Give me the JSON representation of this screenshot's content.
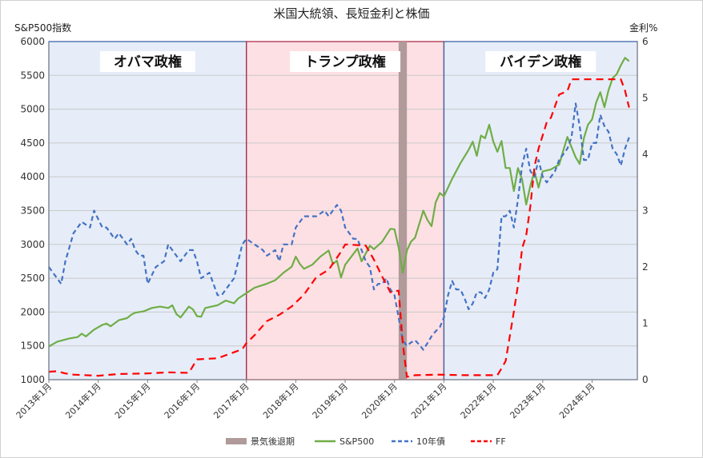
{
  "chart_data": {
    "type": "line",
    "title": "米国大統領、長短金利と株価",
    "ylabel_left": "S&P500指数",
    "ylabel_right": "金利%",
    "ylim_left": [
      1000,
      6000
    ],
    "ylim_right": [
      0,
      6
    ],
    "yticks_left": [
      "1000",
      "1500",
      "2000",
      "2500",
      "3000",
      "3500",
      "4000",
      "4500",
      "5000",
      "5500",
      "6000"
    ],
    "yticks_right": [
      "0",
      "1",
      "2",
      "3",
      "4",
      "5",
      "6"
    ],
    "x_ticks": [
      "2013年1月",
      "2014年1月",
      "2015年1月",
      "2016年1月",
      "2017年1月",
      "2018年1月",
      "2019年1月",
      "2020年1月",
      "2021年1月",
      "2022年1月",
      "2023年1月",
      "2024年1月"
    ],
    "x_range": [
      "2013-01",
      "2024-12"
    ],
    "grid": "horizontal",
    "legend_position": "bottom",
    "administrations": [
      {
        "label": "オバマ政権",
        "start": "2013-01",
        "end": "2017-01",
        "color": "#e6edf8"
      },
      {
        "label": "トランプ政権",
        "start": "2017-01",
        "end": "2021-01",
        "color": "#fde0e4"
      },
      {
        "label": "バイデン政権",
        "start": "2021-01",
        "end": "2024-12",
        "color": "#e6edf8"
      }
    ],
    "recession": {
      "name": "景気後退期",
      "start": "2020-02",
      "end": "2020-04",
      "color": "#b09a9a"
    },
    "series": [
      {
        "name": "S&P500",
        "axis": "left",
        "color": "#70ad47",
        "dash": "solid",
        "points": [
          [
            "2013-01",
            1490
          ],
          [
            "2013-03",
            1560
          ],
          [
            "2013-06",
            1610
          ],
          [
            "2013-08",
            1630
          ],
          [
            "2013-09",
            1680
          ],
          [
            "2013-10",
            1640
          ],
          [
            "2013-12",
            1740
          ],
          [
            "2014-02",
            1810
          ],
          [
            "2014-03",
            1830
          ],
          [
            "2014-04",
            1790
          ],
          [
            "2014-06",
            1880
          ],
          [
            "2014-08",
            1910
          ],
          [
            "2014-09",
            1960
          ],
          [
            "2014-10",
            1990
          ],
          [
            "2014-12",
            2010
          ],
          [
            "2015-02",
            2060
          ],
          [
            "2015-04",
            2080
          ],
          [
            "2015-06",
            2060
          ],
          [
            "2015-07",
            2100
          ],
          [
            "2015-08",
            1970
          ],
          [
            "2015-09",
            1920
          ],
          [
            "2015-11",
            2080
          ],
          [
            "2015-12",
            2040
          ],
          [
            "2016-01",
            1940
          ],
          [
            "2016-02",
            1930
          ],
          [
            "2016-03",
            2060
          ],
          [
            "2016-06",
            2100
          ],
          [
            "2016-08",
            2170
          ],
          [
            "2016-10",
            2130
          ],
          [
            "2016-11",
            2200
          ],
          [
            "2017-01",
            2280
          ],
          [
            "2017-03",
            2360
          ],
          [
            "2017-06",
            2420
          ],
          [
            "2017-08",
            2470
          ],
          [
            "2017-10",
            2580
          ],
          [
            "2017-12",
            2670
          ],
          [
            "2018-01",
            2820
          ],
          [
            "2018-02",
            2710
          ],
          [
            "2018-03",
            2640
          ],
          [
            "2018-05",
            2700
          ],
          [
            "2018-07",
            2820
          ],
          [
            "2018-09",
            2910
          ],
          [
            "2018-10",
            2710
          ],
          [
            "2018-11",
            2760
          ],
          [
            "2018-12",
            2510
          ],
          [
            "2019-01",
            2700
          ],
          [
            "2019-04",
            2940
          ],
          [
            "2019-05",
            2750
          ],
          [
            "2019-07",
            2980
          ],
          [
            "2019-08",
            2930
          ],
          [
            "2019-10",
            3040
          ],
          [
            "2019-12",
            3230
          ],
          [
            "2020-01",
            3225
          ],
          [
            "2020-02",
            2950
          ],
          [
            "2020-03",
            2580
          ],
          [
            "2020-04",
            2910
          ],
          [
            "2020-05",
            3040
          ],
          [
            "2020-06",
            3100
          ],
          [
            "2020-08",
            3500
          ],
          [
            "2020-09",
            3360
          ],
          [
            "2020-10",
            3270
          ],
          [
            "2020-11",
            3620
          ],
          [
            "2020-12",
            3760
          ],
          [
            "2021-01",
            3710
          ],
          [
            "2021-03",
            3970
          ],
          [
            "2021-05",
            4200
          ],
          [
            "2021-07",
            4400
          ],
          [
            "2021-08",
            4520
          ],
          [
            "2021-09",
            4310
          ],
          [
            "2021-10",
            4610
          ],
          [
            "2021-11",
            4570
          ],
          [
            "2021-12",
            4770
          ],
          [
            "2022-01",
            4520
          ],
          [
            "2022-02",
            4370
          ],
          [
            "2022-03",
            4530
          ],
          [
            "2022-04",
            4130
          ],
          [
            "2022-05",
            4130
          ],
          [
            "2022-06",
            3790
          ],
          [
            "2022-07",
            4130
          ],
          [
            "2022-08",
            3960
          ],
          [
            "2022-09",
            3590
          ],
          [
            "2022-10",
            3870
          ],
          [
            "2022-11",
            4080
          ],
          [
            "2022-12",
            3840
          ],
          [
            "2023-01",
            4080
          ],
          [
            "2023-03",
            4110
          ],
          [
            "2023-05",
            4180
          ],
          [
            "2023-07",
            4590
          ],
          [
            "2023-09",
            4290
          ],
          [
            "2023-10",
            4190
          ],
          [
            "2023-11",
            4570
          ],
          [
            "2023-12",
            4770
          ],
          [
            "2024-01",
            4850
          ],
          [
            "2024-02",
            5100
          ],
          [
            "2024-03",
            5250
          ],
          [
            "2024-04",
            5030
          ],
          [
            "2024-05",
            5280
          ],
          [
            "2024-06",
            5460
          ],
          [
            "2024-07",
            5520
          ],
          [
            "2024-08",
            5650
          ],
          [
            "2024-09",
            5760
          ],
          [
            "2024-10",
            5710
          ]
        ]
      },
      {
        "name": "10年債",
        "axis": "right",
        "color": "#4472c4",
        "dash": "dashed",
        "points": [
          [
            "2013-01",
            2.0
          ],
          [
            "2013-02",
            1.9
          ],
          [
            "2013-04",
            1.7
          ],
          [
            "2013-05",
            2.1
          ],
          [
            "2013-07",
            2.6
          ],
          [
            "2013-09",
            2.8
          ],
          [
            "2013-11",
            2.7
          ],
          [
            "2013-12",
            3.0
          ],
          [
            "2014-02",
            2.7
          ],
          [
            "2014-03",
            2.7
          ],
          [
            "2014-05",
            2.5
          ],
          [
            "2014-06",
            2.6
          ],
          [
            "2014-08",
            2.4
          ],
          [
            "2014-09",
            2.5
          ],
          [
            "2014-10",
            2.3
          ],
          [
            "2014-11",
            2.2
          ],
          [
            "2014-12",
            2.2
          ],
          [
            "2015-01",
            1.7
          ],
          [
            "2015-03",
            2.0
          ],
          [
            "2015-05",
            2.1
          ],
          [
            "2015-06",
            2.4
          ],
          [
            "2015-08",
            2.2
          ],
          [
            "2015-09",
            2.1
          ],
          [
            "2015-11",
            2.3
          ],
          [
            "2015-12",
            2.3
          ],
          [
            "2016-01",
            2.1
          ],
          [
            "2016-02",
            1.8
          ],
          [
            "2016-04",
            1.9
          ],
          [
            "2016-06",
            1.5
          ],
          [
            "2016-07",
            1.5
          ],
          [
            "2016-08",
            1.6
          ],
          [
            "2016-10",
            1.8
          ],
          [
            "2016-12",
            2.4
          ],
          [
            "2017-01",
            2.5
          ],
          [
            "2017-03",
            2.4
          ],
          [
            "2017-05",
            2.3
          ],
          [
            "2017-06",
            2.2
          ],
          [
            "2017-08",
            2.3
          ],
          [
            "2017-09",
            2.1
          ],
          [
            "2017-10",
            2.4
          ],
          [
            "2017-12",
            2.4
          ],
          [
            "2018-01",
            2.7
          ],
          [
            "2018-03",
            2.9
          ],
          [
            "2018-04",
            2.9
          ],
          [
            "2018-06",
            2.9
          ],
          [
            "2018-08",
            3.0
          ],
          [
            "2018-09",
            2.9
          ],
          [
            "2018-11",
            3.1
          ],
          [
            "2018-12",
            3.0
          ],
          [
            "2019-01",
            2.7
          ],
          [
            "2019-03",
            2.5
          ],
          [
            "2019-04",
            2.5
          ],
          [
            "2019-05",
            2.3
          ],
          [
            "2019-06",
            2.1
          ],
          [
            "2019-07",
            2.0
          ],
          [
            "2019-08",
            1.6
          ],
          [
            "2019-09",
            1.7
          ],
          [
            "2019-10",
            1.7
          ],
          [
            "2019-11",
            1.8
          ],
          [
            "2019-12",
            1.6
          ],
          [
            "2020-01",
            1.5
          ],
          [
            "2020-02",
            1.1
          ],
          [
            "2020-03",
            0.7
          ],
          [
            "2020-04",
            0.6
          ],
          [
            "2020-05",
            0.66
          ],
          [
            "2020-06",
            0.7
          ],
          [
            "2020-07",
            0.62
          ],
          [
            "2020-08",
            0.53
          ],
          [
            "2020-09",
            0.65
          ],
          [
            "2020-10",
            0.77
          ],
          [
            "2020-11",
            0.86
          ],
          [
            "2020-12",
            0.93
          ],
          [
            "2021-01",
            1.1
          ],
          [
            "2021-02",
            1.5
          ],
          [
            "2021-03",
            1.75
          ],
          [
            "2021-04",
            1.6
          ],
          [
            "2021-05",
            1.6
          ],
          [
            "2021-06",
            1.45
          ],
          [
            "2021-07",
            1.25
          ],
          [
            "2021-08",
            1.35
          ],
          [
            "2021-09",
            1.55
          ],
          [
            "2021-10",
            1.55
          ],
          [
            "2021-11",
            1.45
          ],
          [
            "2021-12",
            1.6
          ],
          [
            "2022-01",
            1.9
          ],
          [
            "2022-02",
            1.96
          ],
          [
            "2022-03",
            2.9
          ],
          [
            "2022-04",
            2.9
          ],
          [
            "2022-05",
            3.0
          ],
          [
            "2022-06",
            2.7
          ],
          [
            "2022-07",
            3.2
          ],
          [
            "2022-08",
            3.8
          ],
          [
            "2022-09",
            4.1
          ],
          [
            "2022-10",
            3.7
          ],
          [
            "2022-11",
            3.6
          ],
          [
            "2022-12",
            3.9
          ],
          [
            "2023-01",
            3.6
          ],
          [
            "2023-02",
            3.5
          ],
          [
            "2023-03",
            3.6
          ],
          [
            "2023-04",
            3.7
          ],
          [
            "2023-05",
            3.9
          ],
          [
            "2023-06",
            4.0
          ],
          [
            "2023-07",
            4.1
          ],
          [
            "2023-08",
            4.3
          ],
          [
            "2023-09",
            4.9
          ],
          [
            "2023-10",
            4.5
          ],
          [
            "2023-11",
            3.9
          ],
          [
            "2023-12",
            3.9
          ],
          [
            "2024-01",
            4.2
          ],
          [
            "2024-02",
            4.2
          ],
          [
            "2024-03",
            4.7
          ],
          [
            "2024-04",
            4.5
          ],
          [
            "2024-05",
            4.4
          ],
          [
            "2024-06",
            4.1
          ],
          [
            "2024-07",
            4.0
          ],
          [
            "2024-08",
            3.8
          ],
          [
            "2024-09",
            4.1
          ],
          [
            "2024-10",
            4.3
          ]
        ]
      },
      {
        "name": "FF",
        "axis": "right",
        "color": "#ff0000",
        "dash": "dashed",
        "points": [
          [
            "2013-01",
            0.14
          ],
          [
            "2013-03",
            0.15
          ],
          [
            "2013-05",
            0.11
          ],
          [
            "2013-07",
            0.09
          ],
          [
            "2014-01",
            0.07
          ],
          [
            "2014-06",
            0.1
          ],
          [
            "2015-01",
            0.11
          ],
          [
            "2015-06",
            0.13
          ],
          [
            "2015-11",
            0.12
          ],
          [
            "2015-12",
            0.24
          ],
          [
            "2016-01",
            0.36
          ],
          [
            "2016-06",
            0.38
          ],
          [
            "2016-12",
            0.54
          ],
          [
            "2017-01",
            0.65
          ],
          [
            "2017-03",
            0.79
          ],
          [
            "2017-06",
            1.04
          ],
          [
            "2017-09",
            1.15
          ],
          [
            "2017-12",
            1.3
          ],
          [
            "2018-03",
            1.51
          ],
          [
            "2018-06",
            1.82
          ],
          [
            "2018-09",
            1.95
          ],
          [
            "2018-12",
            2.27
          ],
          [
            "2019-01",
            2.4
          ],
          [
            "2019-06",
            2.38
          ],
          [
            "2019-08",
            2.13
          ],
          [
            "2019-10",
            1.83
          ],
          [
            "2019-12",
            1.55
          ],
          [
            "2020-02",
            1.58
          ],
          [
            "2020-03",
            0.65
          ],
          [
            "2020-04",
            0.05
          ],
          [
            "2020-06",
            0.08
          ],
          [
            "2020-12",
            0.09
          ],
          [
            "2021-06",
            0.08
          ],
          [
            "2021-12",
            0.08
          ],
          [
            "2022-02",
            0.08
          ],
          [
            "2022-03",
            0.2
          ],
          [
            "2022-04",
            0.33
          ],
          [
            "2022-05",
            0.77
          ],
          [
            "2022-06",
            1.21
          ],
          [
            "2022-07",
            1.68
          ],
          [
            "2022-08",
            2.33
          ],
          [
            "2022-09",
            2.56
          ],
          [
            "2022-10",
            3.08
          ],
          [
            "2022-11",
            3.78
          ],
          [
            "2022-12",
            4.1
          ],
          [
            "2023-02",
            4.57
          ],
          [
            "2023-03",
            4.65
          ],
          [
            "2023-05",
            5.06
          ],
          [
            "2023-07",
            5.12
          ],
          [
            "2023-08",
            5.33
          ],
          [
            "2024-08",
            5.33
          ],
          [
            "2024-09",
            5.13
          ],
          [
            "2024-10",
            4.83
          ]
        ]
      }
    ]
  }
}
